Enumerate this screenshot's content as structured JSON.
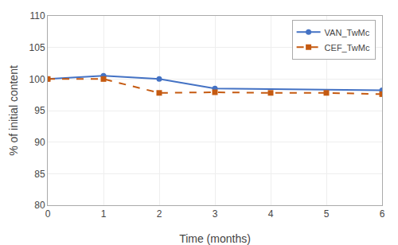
{
  "chart_data": {
    "type": "line",
    "xlabel": "Time (months)",
    "ylabel": "% of initial content",
    "series": [
      {
        "name": "VAN_TwMc",
        "color": "#4472c4",
        "marker": "circle",
        "line_style": "solid",
        "x": [
          0,
          1,
          2,
          3,
          6
        ],
        "values": [
          100.0,
          100.5,
          100.0,
          98.5,
          98.2
        ]
      },
      {
        "name": "CEF_TwMc",
        "color": "#c55a11",
        "marker": "square",
        "line_style": "dashed",
        "x": [
          0,
          1,
          2,
          3,
          4,
          5,
          6
        ],
        "values": [
          100.0,
          100.0,
          97.8,
          97.9,
          97.8,
          97.8,
          97.6
        ]
      }
    ],
    "xlim": [
      0,
      6
    ],
    "xticks": [
      0,
      1,
      2,
      3,
      4,
      5,
      6
    ],
    "ylim": [
      80,
      110
    ],
    "yticks": [
      80,
      85,
      90,
      95,
      100,
      105,
      110
    ],
    "grid": true,
    "legend": "upper right"
  }
}
